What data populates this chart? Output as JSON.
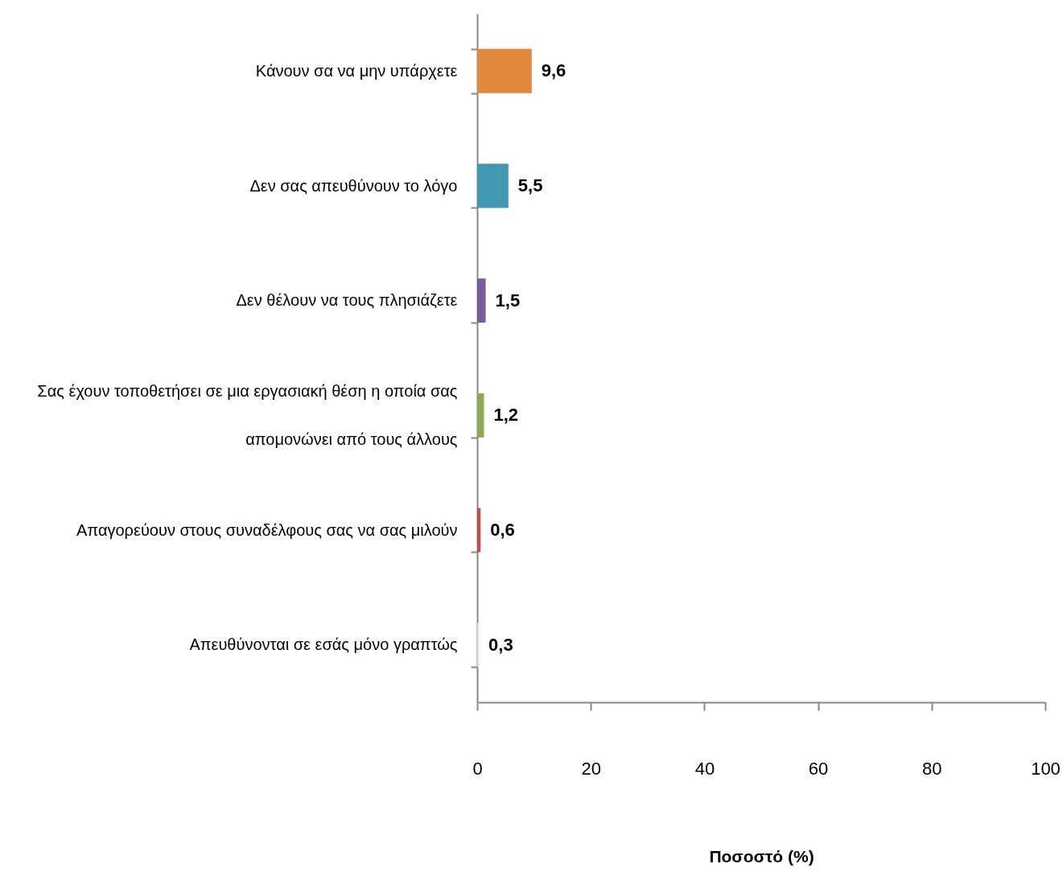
{
  "chart_data": {
    "type": "bar",
    "orientation": "horizontal",
    "categories": [
      "Κάνουν σα να μην υπάρχετε",
      "Δεν σας απευθύνουν το λόγο",
      "Δεν θέλουν να τους πλησιάζετε",
      "Σας έχουν τοποθετήσει σε μια εργασιακή θέση η οποία σας απομονώνει από τους άλλους",
      "Απαγορεύουν στους συναδέλφους σας να σας μιλούν",
      "Απευθύνονται σε εσάς μόνο γραπτώς"
    ],
    "values": [
      9.6,
      5.5,
      1.5,
      1.2,
      0.6,
      0.3
    ],
    "value_labels": [
      "9,6",
      "5,5",
      "1,5",
      "1,2",
      "0,6",
      "0,3"
    ],
    "colors": [
      "#e0883c",
      "#4298b0",
      "#7b5c9b",
      "#8faa56",
      "#c0504d",
      "#dcdcdc"
    ],
    "xlim": [
      0,
      100
    ],
    "xticks": [
      0,
      20,
      40,
      60,
      80,
      100
    ],
    "xlabel": "Ποσοστό (%)",
    "grid": false
  }
}
